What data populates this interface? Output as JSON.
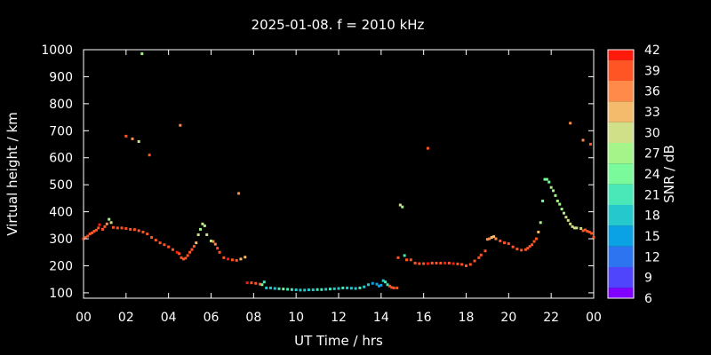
{
  "chart_data": {
    "type": "scatter",
    "title": "2025-01-08. f = 2010 kHz",
    "xlabel": "UT Time / hrs",
    "ylabel": "Virtual height / km",
    "xlim": [
      0,
      24
    ],
    "ylim": [
      80,
      1000
    ],
    "x_ticks": [
      "00",
      "02",
      "04",
      "06",
      "08",
      "10",
      "12",
      "14",
      "16",
      "18",
      "20",
      "22",
      "00"
    ],
    "y_ticks": [
      100,
      200,
      300,
      400,
      500,
      600,
      700,
      800,
      900,
      1000
    ],
    "colorbar": {
      "label": "SNR / dB",
      "ticks": [
        6,
        9,
        12,
        15,
        18,
        21,
        24,
        27,
        30,
        33,
        36,
        39,
        42
      ],
      "colors": [
        "#7f00ff",
        "#4f45fc",
        "#2d74f0",
        "#0aa2e4",
        "#25c8cd",
        "#4ae7b9",
        "#7afa9a",
        "#a4f489",
        "#cfe089",
        "#f4bb6d",
        "#ff8a49",
        "#ff5424",
        "#ff1a0c"
      ]
    },
    "grid": false,
    "points": [
      [
        0.0,
        300,
        40
      ],
      [
        0.1,
        305,
        40
      ],
      [
        0.2,
        310,
        39
      ],
      [
        0.3,
        318,
        39
      ],
      [
        0.4,
        322,
        40
      ],
      [
        0.5,
        328,
        40
      ],
      [
        0.6,
        332,
        39
      ],
      [
        0.7,
        340,
        40
      ],
      [
        0.75,
        352,
        41
      ],
      [
        0.9,
        335,
        40
      ],
      [
        1.0,
        345,
        40
      ],
      [
        1.1,
        355,
        35
      ],
      [
        1.2,
        372,
        28
      ],
      [
        1.3,
        360,
        29
      ],
      [
        1.4,
        342,
        38
      ],
      [
        1.6,
        340,
        40
      ],
      [
        1.8,
        340,
        40
      ],
      [
        2.0,
        338,
        40
      ],
      [
        2.2,
        335,
        40
      ],
      [
        2.4,
        334,
        40
      ],
      [
        2.6,
        330,
        40
      ],
      [
        2.8,
        325,
        40
      ],
      [
        3.0,
        318,
        40
      ],
      [
        3.2,
        305,
        40
      ],
      [
        3.4,
        295,
        40
      ],
      [
        3.6,
        285,
        39
      ],
      [
        3.8,
        278,
        40
      ],
      [
        4.0,
        270,
        40
      ],
      [
        4.2,
        260,
        40
      ],
      [
        4.4,
        250,
        41
      ],
      [
        4.5,
        245,
        40
      ],
      [
        4.6,
        230,
        40
      ],
      [
        4.7,
        225,
        40
      ],
      [
        4.8,
        228,
        40
      ],
      [
        4.9,
        238,
        40
      ],
      [
        5.0,
        250,
        40
      ],
      [
        5.1,
        260,
        40
      ],
      [
        5.2,
        272,
        39
      ],
      [
        5.3,
        285,
        32
      ],
      [
        5.4,
        315,
        30
      ],
      [
        5.5,
        335,
        28
      ],
      [
        5.6,
        355,
        29
      ],
      [
        5.7,
        348,
        28
      ],
      [
        5.8,
        315,
        29
      ],
      [
        6.0,
        292,
        28
      ],
      [
        6.1,
        290,
        36
      ],
      [
        6.2,
        280,
        36
      ],
      [
        6.3,
        265,
        38
      ],
      [
        6.4,
        250,
        40
      ],
      [
        6.6,
        230,
        40
      ],
      [
        6.8,
        225,
        41
      ],
      [
        7.0,
        222,
        40
      ],
      [
        7.2,
        220,
        40
      ],
      [
        7.4,
        225,
        33
      ],
      [
        7.6,
        232,
        32
      ],
      [
        7.7,
        137,
        41
      ],
      [
        7.9,
        137,
        40
      ],
      [
        8.1,
        135,
        39
      ],
      [
        8.3,
        132,
        40
      ],
      [
        8.4,
        130,
        24
      ],
      [
        8.5,
        140,
        20
      ],
      [
        8.6,
        118,
        17
      ],
      [
        8.8,
        118,
        18
      ],
      [
        9.0,
        116,
        19
      ],
      [
        9.2,
        115,
        20
      ],
      [
        9.4,
        114,
        23
      ],
      [
        9.6,
        113,
        21
      ],
      [
        9.8,
        112,
        20
      ],
      [
        10.0,
        111,
        18
      ],
      [
        10.2,
        110,
        19
      ],
      [
        10.4,
        110,
        17
      ],
      [
        10.6,
        111,
        18
      ],
      [
        10.8,
        111,
        19
      ],
      [
        11.0,
        112,
        20
      ],
      [
        11.2,
        112,
        21
      ],
      [
        11.4,
        113,
        19
      ],
      [
        11.6,
        114,
        20
      ],
      [
        11.8,
        115,
        18
      ],
      [
        12.0,
        116,
        19
      ],
      [
        12.2,
        118,
        20
      ],
      [
        12.4,
        118,
        19
      ],
      [
        12.6,
        117,
        18
      ],
      [
        12.8,
        116,
        18
      ],
      [
        13.0,
        118,
        20
      ],
      [
        13.2,
        122,
        18
      ],
      [
        13.4,
        130,
        17
      ],
      [
        13.6,
        135,
        16
      ],
      [
        13.8,
        132,
        16
      ],
      [
        13.9,
        125,
        14
      ],
      [
        14.0,
        128,
        14
      ],
      [
        14.1,
        145,
        17
      ],
      [
        14.2,
        140,
        22
      ],
      [
        14.3,
        130,
        20
      ],
      [
        14.4,
        125,
        40
      ],
      [
        14.5,
        120,
        40
      ],
      [
        14.6,
        118,
        40
      ],
      [
        14.75,
        118,
        39
      ],
      [
        14.8,
        230,
        40
      ],
      [
        14.9,
        425,
        29
      ],
      [
        15.0,
        418,
        27
      ],
      [
        15.1,
        238,
        22
      ],
      [
        15.2,
        222,
        40
      ],
      [
        15.4,
        222,
        40
      ],
      [
        15.6,
        210,
        40
      ],
      [
        15.8,
        208,
        40
      ],
      [
        16.0,
        208,
        40
      ],
      [
        16.2,
        208,
        41
      ],
      [
        16.4,
        210,
        40
      ],
      [
        16.6,
        210,
        40
      ],
      [
        16.8,
        210,
        40
      ],
      [
        17.0,
        210,
        41
      ],
      [
        17.2,
        210,
        40
      ],
      [
        17.4,
        208,
        41
      ],
      [
        17.6,
        207,
        40
      ],
      [
        17.8,
        205,
        40
      ],
      [
        18.0,
        200,
        40
      ],
      [
        18.2,
        205,
        40
      ],
      [
        18.4,
        218,
        40
      ],
      [
        18.6,
        230,
        40
      ],
      [
        18.7,
        240,
        40
      ],
      [
        18.9,
        255,
        39
      ],
      [
        19.0,
        298,
        37
      ],
      [
        19.1,
        300,
        36
      ],
      [
        19.2,
        305,
        34
      ],
      [
        19.3,
        308,
        33
      ],
      [
        19.4,
        300,
        35
      ],
      [
        19.6,
        292,
        38
      ],
      [
        19.8,
        285,
        38
      ],
      [
        20.0,
        282,
        38
      ],
      [
        20.2,
        270,
        39
      ],
      [
        20.4,
        262,
        40
      ],
      [
        20.6,
        258,
        40
      ],
      [
        20.8,
        260,
        40
      ],
      [
        20.9,
        265,
        40
      ],
      [
        21.0,
        272,
        40
      ],
      [
        21.1,
        278,
        40
      ],
      [
        21.2,
        290,
        40
      ],
      [
        21.3,
        300,
        39
      ],
      [
        21.4,
        325,
        34
      ],
      [
        21.5,
        360,
        28
      ],
      [
        21.6,
        440,
        24
      ],
      [
        21.7,
        520,
        24
      ],
      [
        21.8,
        520,
        25
      ],
      [
        21.9,
        510,
        24
      ],
      [
        22.0,
        490,
        27
      ],
      [
        22.1,
        478,
        27
      ],
      [
        22.2,
        460,
        26
      ],
      [
        22.3,
        440,
        27
      ],
      [
        22.4,
        428,
        28
      ],
      [
        22.5,
        410,
        28
      ],
      [
        22.6,
        395,
        28
      ],
      [
        22.7,
        380,
        29
      ],
      [
        22.8,
        368,
        29
      ],
      [
        22.9,
        355,
        29
      ],
      [
        23.0,
        345,
        29
      ],
      [
        23.1,
        340,
        29
      ],
      [
        23.2,
        340,
        30
      ],
      [
        23.4,
        338,
        31
      ],
      [
        23.5,
        330,
        40
      ],
      [
        23.6,
        333,
        40
      ],
      [
        23.7,
        328,
        40
      ],
      [
        23.8,
        325,
        40
      ],
      [
        23.9,
        320,
        40
      ],
      [
        24.0,
        305,
        40
      ],
      [
        2.75,
        985,
        26
      ],
      [
        2.0,
        680,
        39
      ],
      [
        2.3,
        670,
        36
      ],
      [
        2.6,
        660,
        30
      ],
      [
        3.1,
        610,
        40
      ],
      [
        4.55,
        720,
        37
      ],
      [
        7.3,
        468,
        37
      ],
      [
        16.2,
        635,
        40
      ],
      [
        22.9,
        728,
        36
      ],
      [
        23.5,
        665,
        37
      ],
      [
        23.85,
        650,
        40
      ]
    ]
  }
}
